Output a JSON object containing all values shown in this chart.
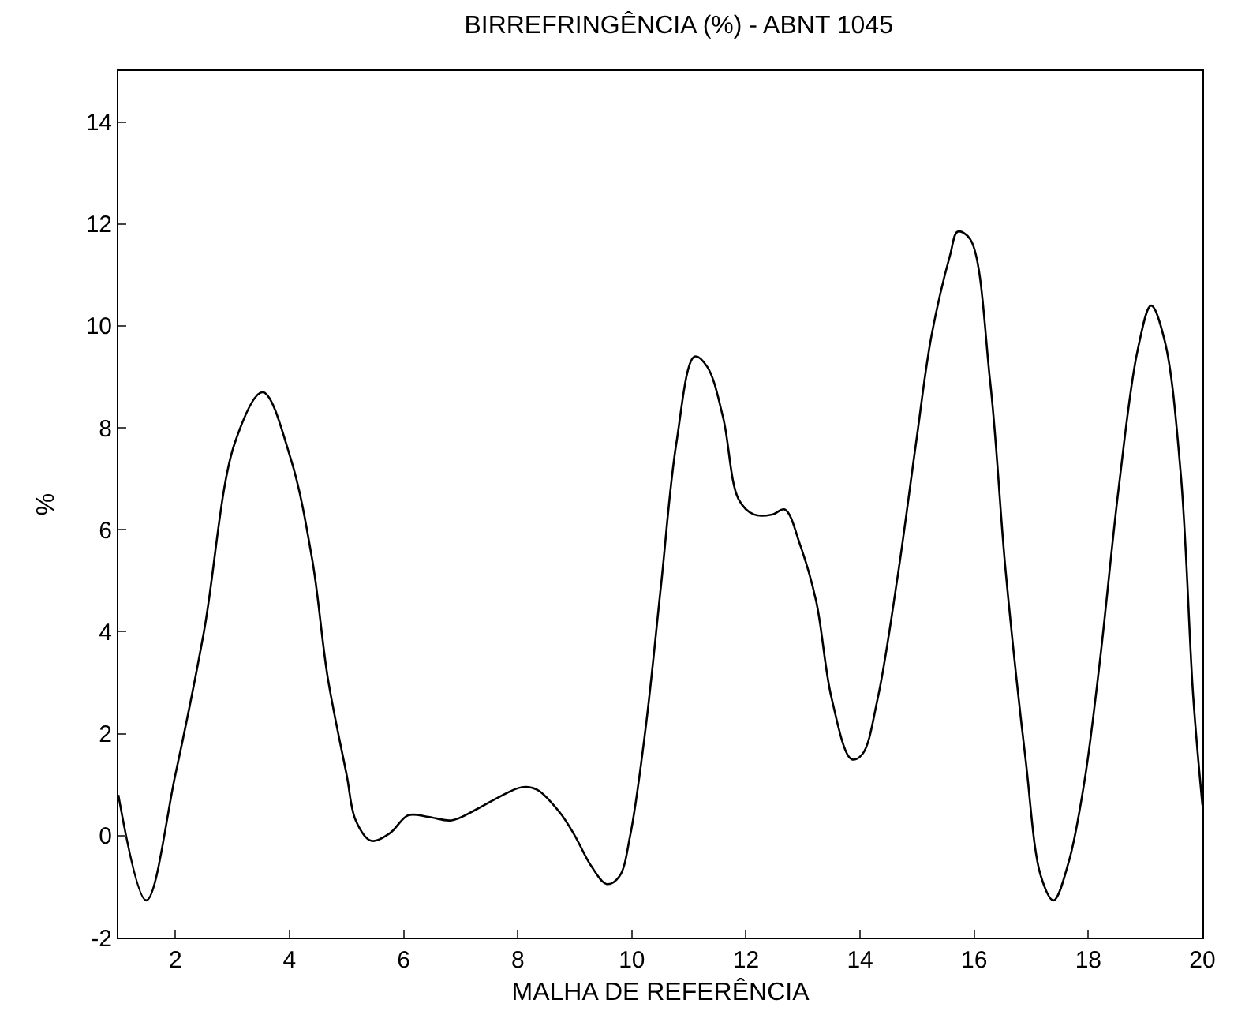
{
  "chart_data": {
    "type": "line",
    "title": "BIRREFRINGÊNCIA (%) - ABNT 1045",
    "xlabel": "MALHA DE REFERÊNCIA",
    "ylabel": "%",
    "x": [
      1,
      1.49,
      2,
      2.5,
      3.04,
      3.53,
      4.02,
      4.4,
      4.67,
      5,
      5.16,
      5.43,
      5.76,
      6.08,
      6.43,
      6.84,
      7.25,
      7.66,
      8.07,
      8.34,
      8.74,
      9,
      9.29,
      9.56,
      9.78,
      9.97,
      10.24,
      10.51,
      10.78,
      11.1,
      11.32,
      11.6,
      11.87,
      12.14,
      12.46,
      12.68,
      12.95,
      13.23,
      13.5,
      13.85,
      14.04,
      14.31,
      14.66,
      14.98,
      15.25,
      15.58,
      15.71,
      15.93,
      16.28,
      16.55,
      16.9,
      17.17,
      17.39,
      17.66,
      17.93,
      18.2,
      18.53,
      18.86,
      19.1,
      19.34,
      19.62,
      19.84,
      20
    ],
    "series": [
      {
        "color": "#000000",
        "values": [
          0.8,
          -1.27,
          1.2,
          4,
          7.7,
          8.7,
          7.4,
          5.4,
          3.1,
          1.2,
          0.3,
          -0.1,
          0.05,
          0.4,
          0.37,
          0.3,
          0.5,
          0.75,
          0.95,
          0.9,
          0.45,
          0,
          -0.6,
          -0.95,
          -0.8,
          0,
          2.1,
          4.9,
          7.7,
          9.4,
          9.2,
          8.2,
          6.6,
          6.3,
          6.3,
          6.4,
          5.7,
          4.6,
          2.7,
          1.5,
          1.6,
          2.7,
          5.1,
          7.7,
          9.8,
          11.4,
          11.85,
          11.7,
          8.9,
          5.2,
          1.5,
          -0.8,
          -1.27,
          -0.5,
          1.05,
          3.4,
          6.8,
          9.5,
          10.4,
          9.7,
          7.1,
          2.7,
          0.6
        ]
      }
    ],
    "xlim": [
      1,
      20
    ],
    "xticks": [
      2,
      4,
      6,
      8,
      10,
      12,
      14,
      16,
      18,
      20
    ],
    "ylim": [
      -2,
      15
    ],
    "yticks": [
      -2,
      0,
      2,
      4,
      6,
      8,
      10,
      12,
      14
    ],
    "legend": false,
    "marker": "none",
    "line_style": "solid"
  }
}
